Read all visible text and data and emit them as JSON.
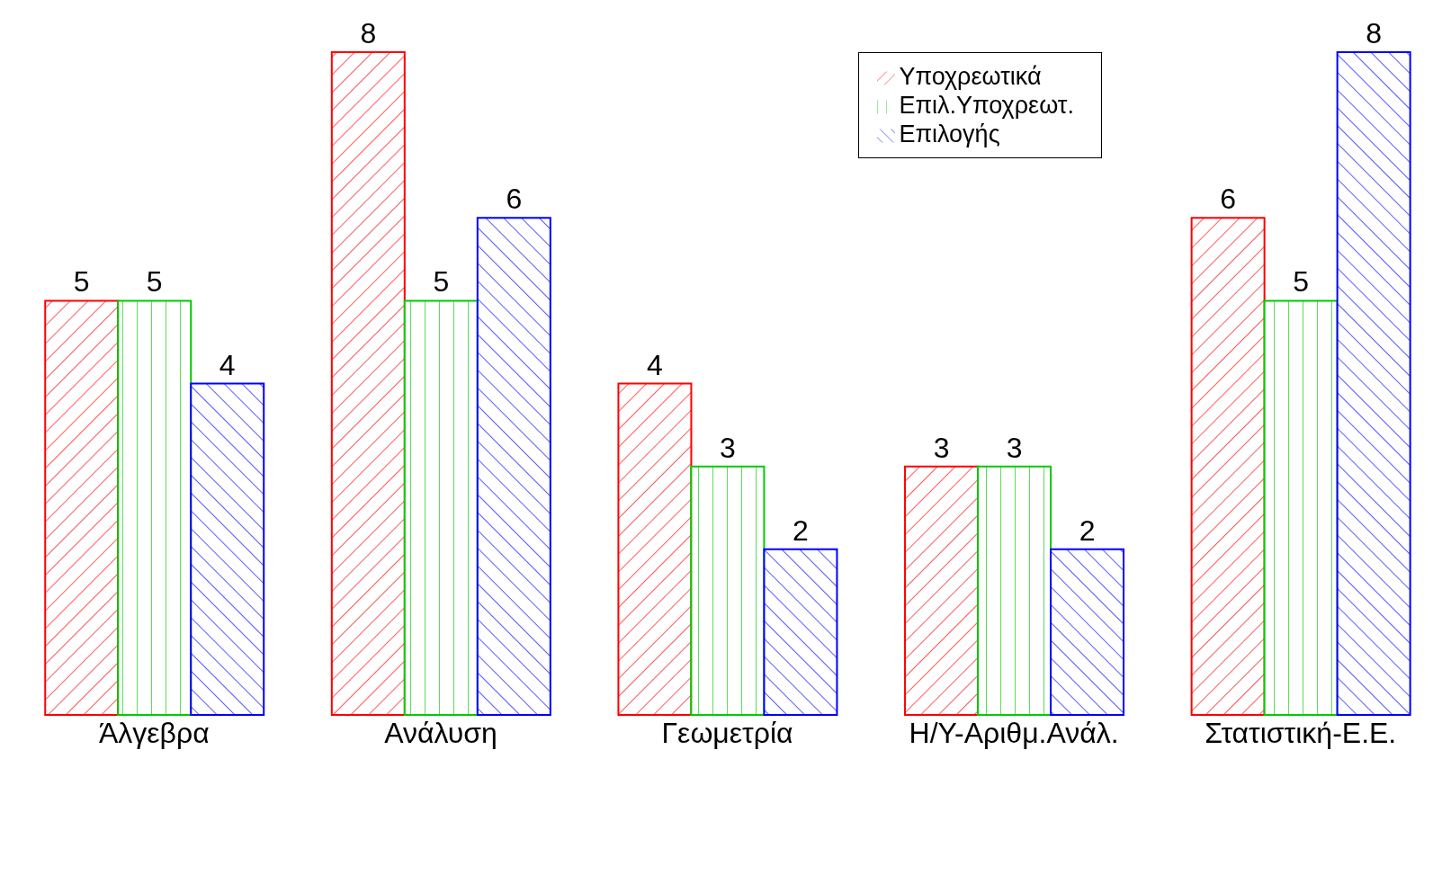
{
  "chart_data": {
    "type": "bar",
    "categories": [
      "Άλγεβρα",
      "Ανάλυση",
      "Γεωμετρία",
      "Η/Υ-Αριθμ.Ανάλ.",
      "Στατιστική-Ε.Ε."
    ],
    "series": [
      {
        "name": "Υποχρεωτικά",
        "color": "#ff0000",
        "values": [
          5,
          8,
          4,
          3,
          6
        ]
      },
      {
        "name": "Επιλ.Υποχρεωτ.",
        "color": "#00cc00",
        "values": [
          5,
          5,
          3,
          3,
          5
        ]
      },
      {
        "name": "Επιλογής",
        "color": "#0000ff",
        "values": [
          4,
          6,
          2,
          2,
          8
        ]
      }
    ],
    "data_labels": true,
    "legend": "top right",
    "grid": false
  }
}
